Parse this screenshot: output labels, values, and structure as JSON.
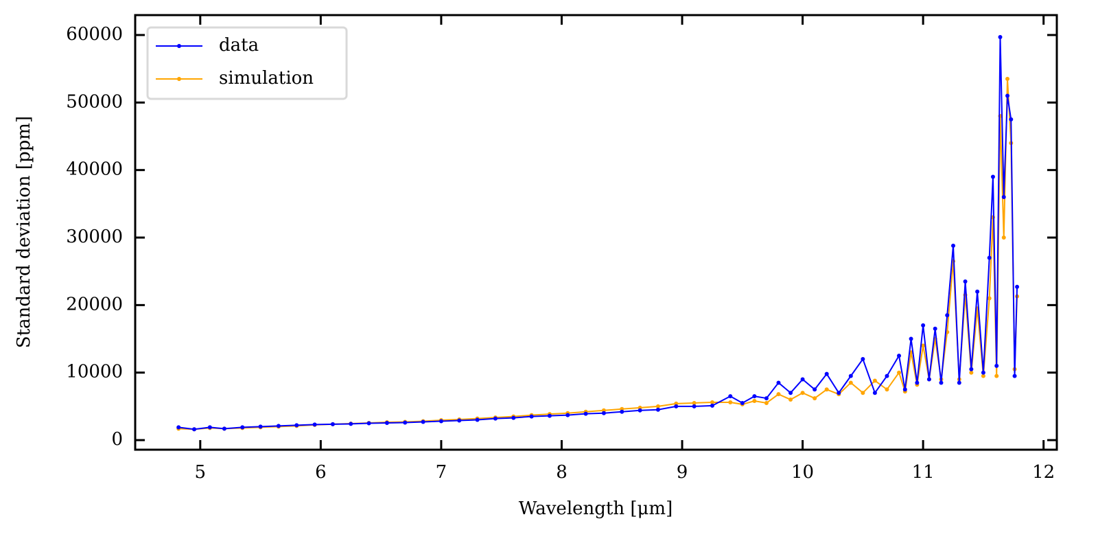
{
  "chart_data": {
    "type": "line",
    "xlabel": "Wavelength [μm]",
    "ylabel": "Standard deviation [ppm]",
    "x": [
      4.82,
      4.95,
      5.08,
      5.2,
      5.35,
      5.5,
      5.65,
      5.8,
      5.95,
      6.1,
      6.25,
      6.4,
      6.55,
      6.7,
      6.85,
      7.0,
      7.15,
      7.3,
      7.45,
      7.6,
      7.75,
      7.9,
      8.05,
      8.2,
      8.35,
      8.5,
      8.65,
      8.8,
      8.95,
      9.1,
      9.25,
      9.4,
      9.5,
      9.6,
      9.7,
      9.8,
      9.9,
      10.0,
      10.1,
      10.2,
      10.3,
      10.4,
      10.5,
      10.6,
      10.7,
      10.8,
      10.85,
      10.9,
      10.95,
      11.0,
      11.05,
      11.1,
      11.15,
      11.2,
      11.25,
      11.3,
      11.35,
      11.4,
      11.45,
      11.5,
      11.55,
      11.58,
      11.61,
      11.64,
      11.67,
      11.7,
      11.73,
      11.76,
      11.78
    ],
    "series": [
      {
        "name": "data",
        "color": "#0000ff",
        "values": [
          1900,
          1600,
          1900,
          1700,
          1900,
          2000,
          2100,
          2200,
          2300,
          2350,
          2400,
          2500,
          2550,
          2600,
          2700,
          2800,
          2900,
          3000,
          3200,
          3300,
          3500,
          3600,
          3700,
          3900,
          4000,
          4200,
          4400,
          4500,
          5000,
          5000,
          5100,
          6500,
          5500,
          6500,
          6200,
          8500,
          7000,
          9000,
          7500,
          9800,
          7000,
          9500,
          12000,
          7000,
          9500,
          12500,
          7500,
          15000,
          8500,
          17000,
          9000,
          16500,
          8500,
          18500,
          28800,
          8500,
          23500,
          10500,
          22000,
          10000,
          27000,
          39000,
          11000,
          59700,
          36000,
          51000,
          47500,
          9500,
          22700
        ]
      },
      {
        "name": "simulation",
        "color": "#ffa500",
        "values": [
          1700,
          1600,
          1800,
          1700,
          1800,
          1900,
          2000,
          2100,
          2250,
          2350,
          2450,
          2550,
          2650,
          2700,
          2800,
          2950,
          3050,
          3200,
          3350,
          3500,
          3700,
          3850,
          4000,
          4200,
          4400,
          4600,
          4800,
          5000,
          5400,
          5500,
          5600,
          5600,
          5300,
          5800,
          5500,
          6800,
          6000,
          7000,
          6200,
          7500,
          6800,
          8500,
          7000,
          8800,
          7500,
          10000,
          7200,
          13000,
          8200,
          14000,
          9000,
          15000,
          9000,
          16000,
          26500,
          9000,
          21500,
          10000,
          19500,
          9500,
          21000,
          33000,
          9500,
          48000,
          30000,
          53500,
          44000,
          10500,
          21300
        ]
      }
    ],
    "xlim": [
      4.46,
      12.11
    ],
    "xticks": [
      5,
      6,
      7,
      8,
      9,
      10,
      11,
      12
    ],
    "ylim": [
      -1420,
      62950
    ],
    "yticks": [
      0,
      10000,
      20000,
      30000,
      40000,
      50000,
      60000
    ],
    "legend": "upper left"
  }
}
